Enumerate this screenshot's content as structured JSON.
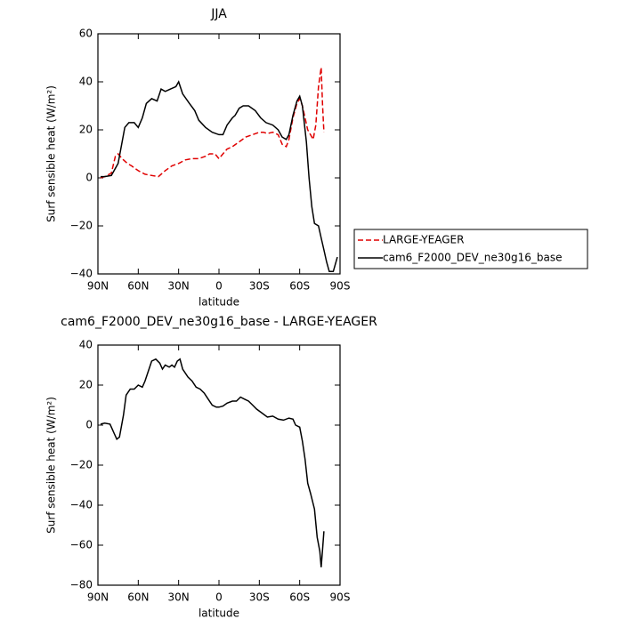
{
  "chart_data": [
    {
      "type": "line",
      "title": "JJA",
      "xlabel": "latitude",
      "ylabel": "Surf sensible heat (W/m²)",
      "xlim": [
        90,
        -90
      ],
      "ylim": [
        -40,
        60
      ],
      "xticks": [
        {
          "value": 90,
          "label": "90N"
        },
        {
          "value": 60,
          "label": "60N"
        },
        {
          "value": 30,
          "label": "30N"
        },
        0,
        {
          "value": -30,
          "label": "30S"
        },
        {
          "value": -60,
          "label": "60S"
        },
        {
          "value": -90,
          "label": "90S"
        }
      ],
      "yticks": [
        -40,
        -20,
        0,
        20,
        40,
        60
      ],
      "legend": "right",
      "series": [
        {
          "name": "LARGE-YEAGER",
          "color": "#e00000",
          "dash": true,
          "x": [
            88,
            85,
            80,
            77,
            75,
            72,
            68,
            65,
            60,
            55,
            50,
            45,
            40,
            35,
            30,
            25,
            20,
            15,
            10,
            7,
            3,
            0,
            -3,
            -6,
            -10,
            -15,
            -20,
            -25,
            -30,
            -33,
            -36,
            -40,
            -44,
            -47,
            -50,
            -52,
            -55,
            -58,
            -60,
            -62,
            -64,
            -66,
            -68,
            -70,
            -72,
            -74,
            -76,
            -77,
            -78
          ],
          "values": [
            0,
            0.5,
            2,
            9,
            10,
            8,
            6,
            5,
            3,
            1.5,
            1,
            0.5,
            3,
            5,
            6,
            7.5,
            8,
            8,
            9,
            10,
            10,
            8,
            10,
            12,
            13,
            15,
            17,
            18,
            19,
            19,
            18.5,
            19,
            18,
            14,
            13,
            16,
            25,
            31,
            33,
            30,
            25,
            20,
            18,
            16,
            22,
            38,
            46,
            30,
            19
          ]
        },
        {
          "name": "cam6_F2000_DEV_ne30g16_base",
          "color": "#000000",
          "dash": false,
          "x": [
            88,
            85,
            80,
            75,
            72,
            70,
            67,
            63,
            60,
            57,
            54,
            50,
            46,
            43,
            40,
            36,
            32,
            30,
            27,
            22,
            18,
            15,
            10,
            5,
            0,
            -3,
            -6,
            -10,
            -12,
            -15,
            -18,
            -22,
            -27,
            -31,
            -35,
            -40,
            -44,
            -47,
            -50,
            -52,
            -55,
            -58,
            -60,
            -62,
            -65,
            -67,
            -69,
            -71,
            -74,
            -76,
            -78,
            -80,
            -82,
            -85,
            -88
          ],
          "values": [
            0.5,
            0.5,
            1,
            6,
            15,
            21,
            23,
            23,
            21,
            25,
            31,
            33,
            32,
            37,
            36,
            37,
            38,
            40,
            35,
            31,
            28,
            24,
            21,
            19,
            18,
            18,
            22,
            25,
            26,
            29,
            30,
            30,
            28,
            25,
            23,
            22,
            20,
            17,
            16,
            18,
            26,
            32,
            34,
            30,
            15,
            0,
            -12,
            -19,
            -20,
            -25,
            -30,
            -35,
            -39,
            -39,
            -33
          ]
        }
      ]
    },
    {
      "type": "line",
      "title": "cam6_F2000_DEV_ne30g16_base - LARGE-YEAGER",
      "xlabel": "latitude",
      "ylabel": "Surf sensible heat (W/m²)",
      "xlim": [
        90,
        -90
      ],
      "ylim": [
        -80,
        40
      ],
      "xticks": [
        {
          "value": 90,
          "label": "90N"
        },
        {
          "value": 60,
          "label": "60N"
        },
        {
          "value": 30,
          "label": "30N"
        },
        0,
        {
          "value": -30,
          "label": "30S"
        },
        {
          "value": -60,
          "label": "60S"
        },
        {
          "value": -90,
          "label": "90S"
        }
      ],
      "yticks": [
        -80,
        -60,
        -40,
        -20,
        0,
        20,
        40
      ],
      "series": [
        {
          "color": "#000000",
          "dash": false,
          "x": [
            88,
            85,
            81,
            78,
            76,
            74,
            71,
            69,
            66,
            63,
            60,
            57,
            55,
            52,
            50,
            47,
            44,
            42,
            40,
            37,
            35,
            33,
            31,
            29,
            27,
            23,
            20,
            17,
            14,
            11,
            8,
            5,
            2,
            0,
            -3,
            -6,
            -10,
            -13,
            -16,
            -19,
            -22,
            -25,
            -28,
            -32,
            -36,
            -40,
            -44,
            -48,
            -52,
            -55,
            -57,
            -60,
            -62,
            -64,
            -66,
            -68,
            -71,
            -73,
            -75,
            -76,
            -77,
            -78
          ],
          "values": [
            0.5,
            1,
            0.5,
            -4,
            -7,
            -6,
            5,
            15,
            18,
            18,
            20,
            19,
            22,
            28,
            32,
            33,
            31,
            28,
            30,
            29,
            30,
            29,
            32,
            33,
            28,
            24,
            22,
            19,
            18,
            16,
            13,
            10,
            9,
            9,
            9.5,
            11,
            12,
            12,
            14,
            13,
            12,
            10,
            8,
            6,
            4,
            4.5,
            3,
            2.5,
            3.5,
            3,
            0,
            -1,
            -8,
            -17,
            -29,
            -34,
            -42,
            -56,
            -63,
            -71,
            -62,
            -53
          ]
        }
      ]
    }
  ]
}
